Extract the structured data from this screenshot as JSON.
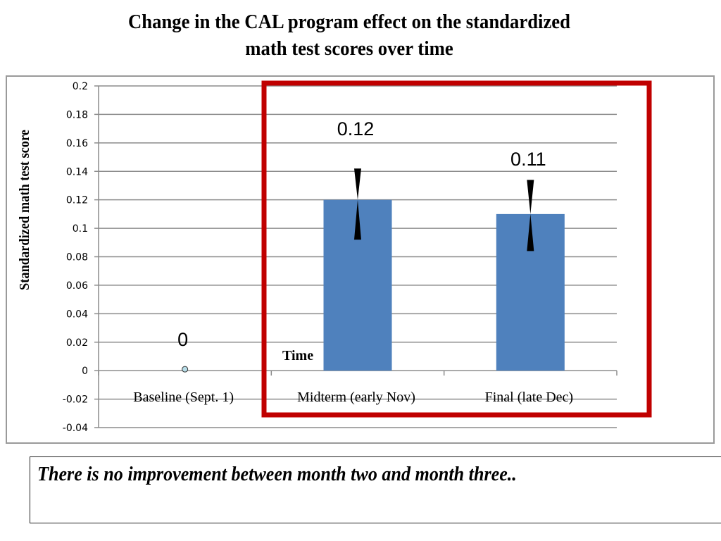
{
  "chart_data": {
    "type": "bar",
    "title": "Change in the CAL program effect on the standardized math test scores over time",
    "title_lines": [
      "Change in the CAL program effect on the standardized",
      "math test scores over time"
    ],
    "xlabel": "Time",
    "ylabel": "Standardized math test score",
    "categories": [
      "Baseline (Sept. 1)",
      "Midterm (early Nov)",
      "Final (late Dec)"
    ],
    "values": [
      0,
      0.12,
      0.11
    ],
    "data_labels": [
      "0",
      "0.12",
      "0.11"
    ],
    "markers": [
      "point",
      "bar",
      "bar"
    ],
    "error_bars": [
      null,
      {
        "low": 0.092,
        "high": 0.142
      },
      {
        "low": 0.084,
        "high": 0.134
      }
    ],
    "ylim": [
      -0.04,
      0.2
    ],
    "yticks": [
      -0.04,
      -0.02,
      0,
      0.02,
      0.04,
      0.06,
      0.08,
      0.1,
      0.12,
      0.14,
      0.16,
      0.18,
      0.2
    ],
    "ytick_labels": [
      "-0.04",
      "-0.02",
      "0",
      "0.02",
      "0.04",
      "0.06",
      "0.08",
      "0.1",
      "0.12",
      "0.14",
      "0.16",
      "0.18",
      "0.2"
    ],
    "grid": true,
    "legend": "none",
    "highlight": {
      "categories": [
        "Midterm (early Nov)",
        "Final (late Dec)"
      ],
      "color": "#c00000"
    },
    "colors": {
      "bar": "#4f81bd",
      "point": "#b7dde8",
      "grid": "#8c8c8c",
      "error_bar": "#000000"
    }
  },
  "note": {
    "text": "There is no improvement between month two and month three.."
  }
}
